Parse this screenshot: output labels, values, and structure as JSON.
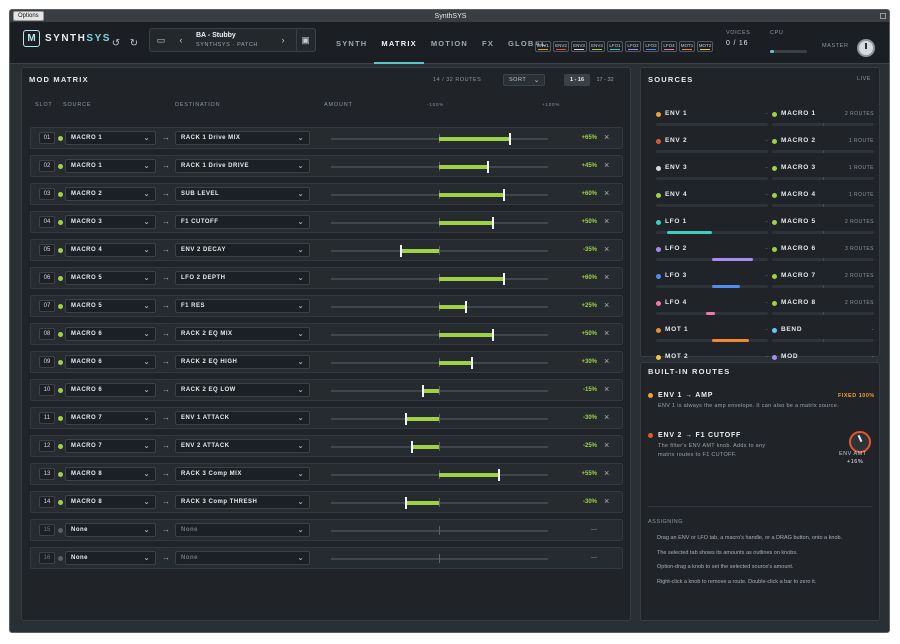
{
  "window": {
    "title": "SynthSYS",
    "options_label": "Options"
  },
  "header": {
    "logo_a": "SYNTH",
    "logo_b": "SYS",
    "patch_name": "BA - Stubby",
    "patch_sub": "SYNTHSYS · PATCH",
    "tabs": [
      "SYNTH",
      "MATRIX",
      "MOTION",
      "FX",
      "GLOBAL"
    ],
    "active_tab": "MATRIX",
    "chips": [
      {
        "label": "ENV1",
        "color": "#f0a030"
      },
      {
        "label": "ENV2",
        "color": "#e4572e"
      },
      {
        "label": "ENV3",
        "color": "#d9d9d9"
      },
      {
        "label": "ENV4",
        "color": "#9fd146"
      },
      {
        "label": "LFO1",
        "color": "#3ecfc0"
      },
      {
        "label": "LFO2",
        "color": "#a98bf0"
      },
      {
        "label": "LFO3",
        "color": "#4f8df0"
      },
      {
        "label": "LFO4",
        "color": "#f07aa8"
      },
      {
        "label": "MOT1",
        "color": "#f08a30"
      },
      {
        "label": "MOT2",
        "color": "#e8d040"
      }
    ],
    "voices_label": "VOICES",
    "voices_value": "0 / 16",
    "cpu_label": "CPU",
    "cpu_fraction": 0.1,
    "master_label": "MASTER"
  },
  "matrix": {
    "title": "MOD MATRIX",
    "routes_count": "14 / 32 ROUTES",
    "sort_label": "SORT",
    "pages": [
      "1 - 16",
      "17 - 32"
    ],
    "columns": {
      "slot": "SLOT",
      "source": "SOURCE",
      "destination": "DESTINATION",
      "amount": "AMOUNT",
      "min": "-100%",
      "max": "+100%"
    },
    "rows": [
      {
        "slot": "01",
        "source": "MACRO 1",
        "dest": "RACK 1 Drive MIX",
        "amount": 65,
        "amount_text": "+65%"
      },
      {
        "slot": "02",
        "source": "MACRO 1",
        "dest": "RACK 1 Drive DRIVE",
        "amount": 45,
        "amount_text": "+45%"
      },
      {
        "slot": "03",
        "source": "MACRO 2",
        "dest": "SUB LEVEL",
        "amount": 60,
        "amount_text": "+60%"
      },
      {
        "slot": "04",
        "source": "MACRO 3",
        "dest": "F1 CUTOFF",
        "amount": 50,
        "amount_text": "+50%"
      },
      {
        "slot": "05",
        "source": "MACRO 4",
        "dest": "ENV 2 DECAY",
        "amount": -35,
        "amount_text": "-35%"
      },
      {
        "slot": "06",
        "source": "MACRO 5",
        "dest": "LFO 2 DEPTH",
        "amount": 60,
        "amount_text": "+60%"
      },
      {
        "slot": "07",
        "source": "MACRO 5",
        "dest": "F1 RES",
        "amount": 25,
        "amount_text": "+25%"
      },
      {
        "slot": "08",
        "source": "MACRO 6",
        "dest": "RACK 2 EQ MIX",
        "amount": 50,
        "amount_text": "+50%"
      },
      {
        "slot": "09",
        "source": "MACRO 6",
        "dest": "RACK 2 EQ HIGH",
        "amount": 30,
        "amount_text": "+30%"
      },
      {
        "slot": "10",
        "source": "MACRO 6",
        "dest": "RACK 2 EQ LOW",
        "amount": -15,
        "amount_text": "-15%"
      },
      {
        "slot": "11",
        "source": "MACRO 7",
        "dest": "ENV 1 ATTACK",
        "amount": -30,
        "amount_text": "-30%"
      },
      {
        "slot": "12",
        "source": "MACRO 7",
        "dest": "ENV 2 ATTACK",
        "amount": -25,
        "amount_text": "-25%"
      },
      {
        "slot": "13",
        "source": "MACRO 8",
        "dest": "RACK 3 Comp MIX",
        "amount": 55,
        "amount_text": "+55%"
      },
      {
        "slot": "14",
        "source": "MACRO 8",
        "dest": "RACK 3 Comp THRESH",
        "amount": -30,
        "amount_text": "-30%"
      },
      {
        "slot": "15",
        "source": "None",
        "dest": "None",
        "amount": 0,
        "amount_text": "—",
        "empty": true
      },
      {
        "slot": "16",
        "source": "None",
        "dest": "None",
        "amount": 0,
        "amount_text": "—",
        "empty": true
      }
    ]
  },
  "sources": {
    "title": "SOURCES",
    "live_label": "LIVE",
    "left": [
      {
        "name": "ENV 1",
        "color": "#f0a030",
        "routes": "-",
        "fill": 0
      },
      {
        "name": "ENV 2",
        "color": "#e4572e",
        "routes": "-",
        "fill": 0
      },
      {
        "name": "ENV 3",
        "color": "#d9d9d9",
        "routes": "-",
        "fill": 0
      },
      {
        "name": "ENV 4",
        "color": "#9fd146",
        "routes": "-",
        "fill": 0
      },
      {
        "name": "LFO 1",
        "color": "#3ecfc0",
        "routes": "-",
        "fill": 0.4,
        "from": 0.1
      },
      {
        "name": "LFO 2",
        "color": "#a98bf0",
        "routes": "-",
        "fill": 0.37,
        "from": 0.5
      },
      {
        "name": "LFO 3",
        "color": "#4f8df0",
        "routes": "-",
        "fill": 0.25,
        "from": 0.5
      },
      {
        "name": "LFO 4",
        "color": "#f07aa8",
        "routes": "-",
        "fill": 0.08,
        "from": 0.45
      },
      {
        "name": "MOT 1",
        "color": "#f08a30",
        "routes": "-",
        "fill": 0.33,
        "from": 0.5
      },
      {
        "name": "MOT 2",
        "color": "#e8d040",
        "routes": "-",
        "fill": 0
      }
    ],
    "right": [
      {
        "name": "MACRO 1",
        "routes": "2 ROUTES"
      },
      {
        "name": "MACRO 2",
        "routes": "1 ROUTE"
      },
      {
        "name": "MACRO 3",
        "routes": "1 ROUTE"
      },
      {
        "name": "MACRO 4",
        "routes": "1 ROUTE"
      },
      {
        "name": "MACRO 5",
        "routes": "2 ROUTES"
      },
      {
        "name": "MACRO 6",
        "routes": "3 ROUTES"
      },
      {
        "name": "MACRO 7",
        "routes": "2 ROUTES"
      },
      {
        "name": "MACRO 8",
        "routes": "2 ROUTES"
      },
      {
        "name": "BEND",
        "routes": "-",
        "color": "#6ec6ea"
      },
      {
        "name": "MOD",
        "routes": "-",
        "color": "#a98bf0"
      }
    ]
  },
  "builtin": {
    "title": "BUILT-IN ROUTES",
    "route1_name": "ENV 1 → AMP",
    "route1_badge": "FIXED 100%",
    "route1_desc": "ENV 1 is always the amp envelope. It can also be a matrix source.",
    "route2_name": "ENV 2 → F1 CUTOFF",
    "route2_desc1": "The filter's ENV AMT knob. Adds to any",
    "route2_desc2": "matrix routes to F1 CUTOFF.",
    "knob_label": "ENV AMT",
    "knob_value": "+16%",
    "assign_title": "ASSIGNING",
    "assign_lines": [
      "Drag an ENV or LFO tab, a macro's handle, or a DRAG button, onto a knob.",
      "The selected tab shows its amounts as outlines on knobs.",
      "Option-drag a knob to set the selected source's amount.",
      "Right-click a knob to remove a route. Double-click a bar to zero it."
    ]
  },
  "colors": {
    "accent": "#9fd146",
    "teal": "#5fc4c9",
    "macro": "#9fd146"
  }
}
